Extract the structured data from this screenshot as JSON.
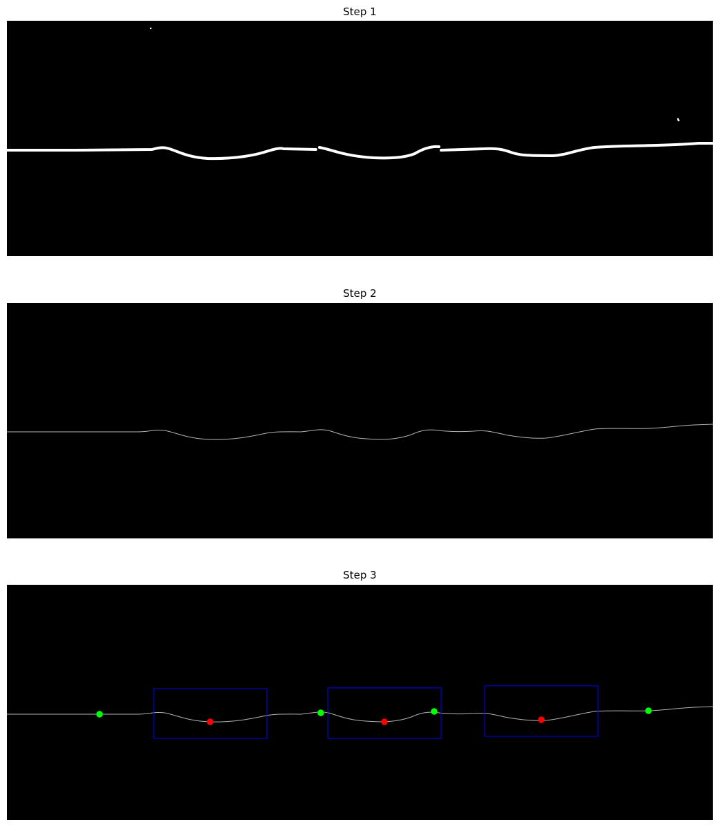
{
  "panels": [
    {
      "title": "Step 1"
    },
    {
      "title": "Step 2"
    },
    {
      "title": "Step 3"
    }
  ],
  "colors": {
    "background": "#000000",
    "curve_step1": "#ffffff",
    "curve_thin": "#b4b4b4",
    "box": "#0000ff",
    "green_point": "#00ff00",
    "red_point": "#ff0000"
  }
}
